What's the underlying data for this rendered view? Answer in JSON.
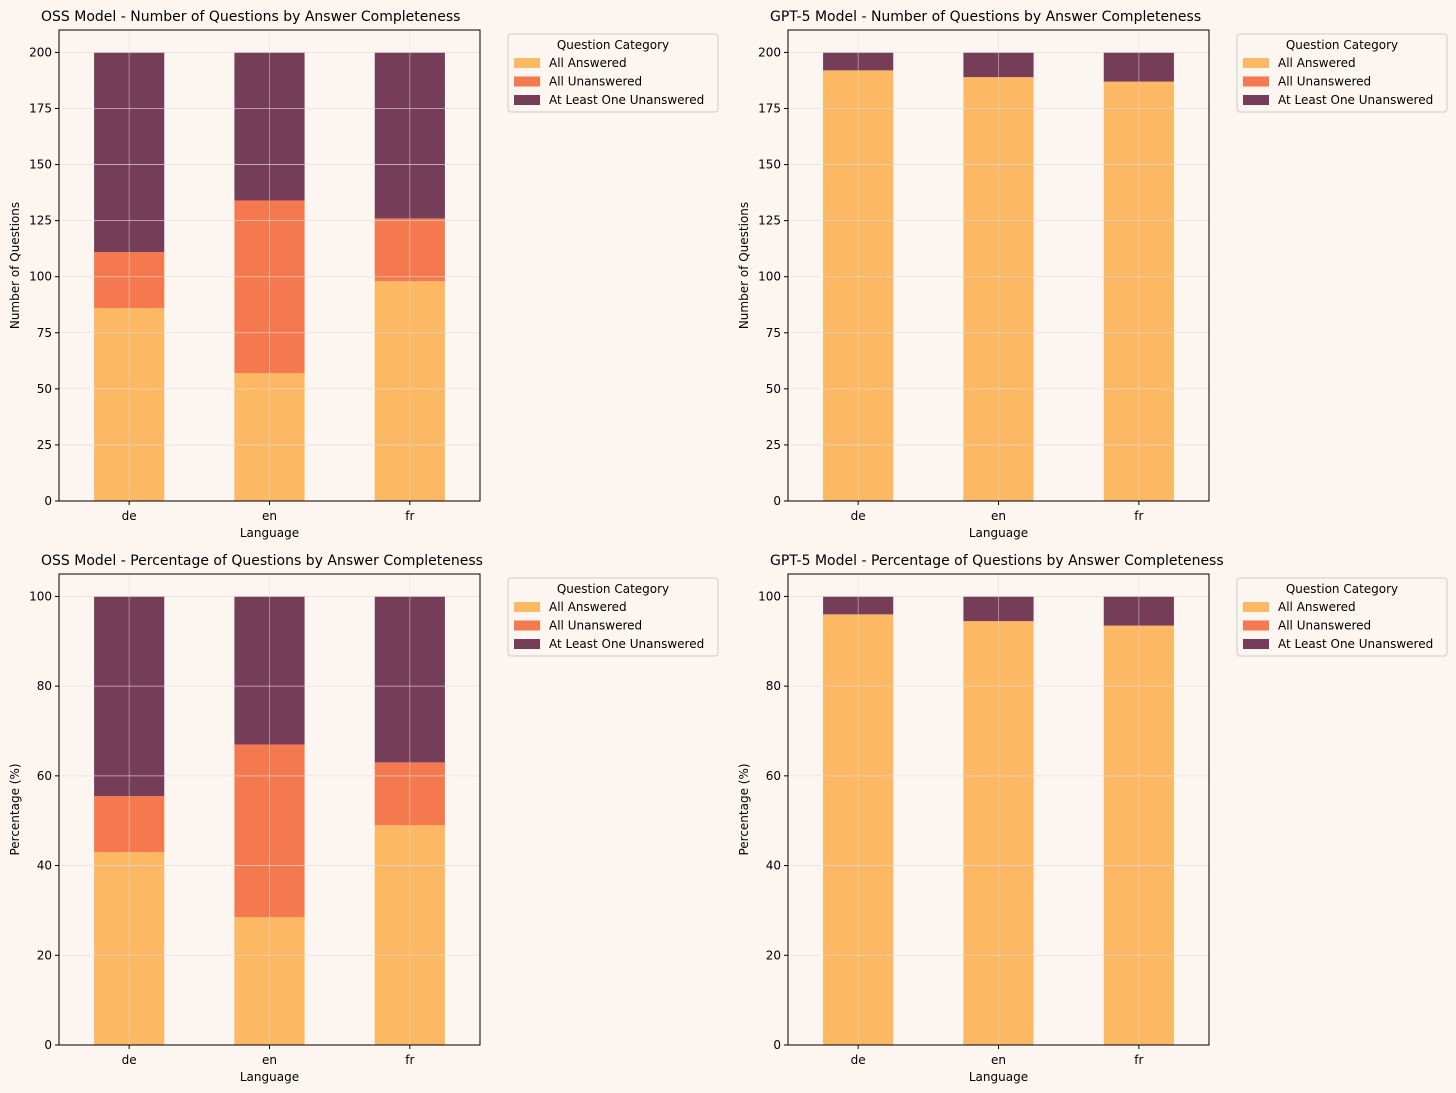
{
  "figure_background": "#fdf5f0",
  "legend_title": "Question Category",
  "colors": {
    "All Answered": "#fdb863",
    "All Unanswered": "#f4794e",
    "At Least One Unanswered": "#763d59",
    "axes_bg": "#fdf5f0",
    "grid": "#dddddd"
  },
  "chart_data": [
    {
      "type": "bar",
      "stacked": true,
      "title": "OSS Model - Number of Questions by Answer Completeness",
      "xlabel": "Language",
      "ylabel": "Number of Questions",
      "categories": [
        "de",
        "en",
        "fr"
      ],
      "ylim": [
        0,
        210
      ],
      "yticks": [
        0,
        25,
        50,
        75,
        100,
        125,
        150,
        175,
        200
      ],
      "grid": true,
      "legend_position": "outside-top-right",
      "series": [
        {
          "name": "All Answered",
          "values": [
            86,
            57,
            98
          ]
        },
        {
          "name": "All Unanswered",
          "values": [
            25,
            77,
            28
          ]
        },
        {
          "name": "At Least One Unanswered",
          "values": [
            89,
            66,
            74
          ]
        }
      ]
    },
    {
      "type": "bar",
      "stacked": true,
      "title": "GPT-5 Model - Number of Questions by Answer Completeness",
      "xlabel": "Language",
      "ylabel": "Number of Questions",
      "categories": [
        "de",
        "en",
        "fr"
      ],
      "ylim": [
        0,
        210
      ],
      "yticks": [
        0,
        25,
        50,
        75,
        100,
        125,
        150,
        175,
        200
      ],
      "grid": true,
      "legend_position": "outside-top-right",
      "series": [
        {
          "name": "All Answered",
          "values": [
            192,
            189,
            187
          ]
        },
        {
          "name": "All Unanswered",
          "values": [
            0,
            0,
            0
          ]
        },
        {
          "name": "At Least One Unanswered",
          "values": [
            8,
            11,
            13
          ]
        }
      ]
    },
    {
      "type": "bar",
      "stacked": true,
      "title": "OSS Model - Percentage of Questions by Answer Completeness",
      "xlabel": "Language",
      "ylabel": "Percentage (%)",
      "categories": [
        "de",
        "en",
        "fr"
      ],
      "ylim": [
        0,
        105
      ],
      "yticks": [
        0,
        20,
        40,
        60,
        80,
        100
      ],
      "grid": true,
      "legend_position": "outside-top-right",
      "series": [
        {
          "name": "All Answered",
          "values": [
            43.0,
            28.5,
            49.0
          ]
        },
        {
          "name": "All Unanswered",
          "values": [
            12.5,
            38.5,
            14.0
          ]
        },
        {
          "name": "At Least One Unanswered",
          "values": [
            44.5,
            33.0,
            37.0
          ]
        }
      ]
    },
    {
      "type": "bar",
      "stacked": true,
      "title": "GPT-5 Model - Percentage of Questions by Answer Completeness",
      "xlabel": "Language",
      "ylabel": "Percentage (%)",
      "categories": [
        "de",
        "en",
        "fr"
      ],
      "ylim": [
        0,
        105
      ],
      "yticks": [
        0,
        20,
        40,
        60,
        80,
        100
      ],
      "grid": true,
      "legend_position": "outside-top-right",
      "series": [
        {
          "name": "All Answered",
          "values": [
            96.0,
            94.5,
            93.5
          ]
        },
        {
          "name": "All Unanswered",
          "values": [
            0,
            0,
            0
          ]
        },
        {
          "name": "At Least One Unanswered",
          "values": [
            4.0,
            5.5,
            6.5
          ]
        }
      ]
    }
  ]
}
